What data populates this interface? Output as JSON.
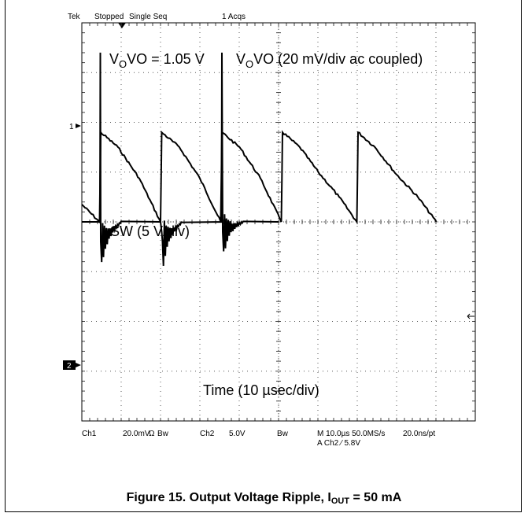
{
  "chart_data": {
    "type": "line",
    "title": "",
    "status": {
      "brand": "Tek",
      "state": "Stopped",
      "mode": "Single Seq",
      "acqs": "1 Acqs"
    },
    "xlabel": "Time (10 µsec/div)",
    "x_unit": "µs",
    "xlim": [
      -40,
      60
    ],
    "grid": true,
    "divisions": {
      "x": 10,
      "y": 8
    },
    "markers": {
      "ch1": "1",
      "ch2": "2"
    },
    "series": [
      {
        "name": "VO (20 mV/div ac coupled)",
        "channel": "Ch1",
        "unit": "mV",
        "ylim": [
          -80,
          80
        ],
        "x": [
          -40,
          -35.5,
          -35.2,
          -30.8,
          -25.4,
          -20,
          -19.7,
          -15.2,
          -10,
          -4.7,
          -4.4,
          0.1,
          5.4,
          10.7,
          11.0,
          15.4,
          20.1,
          25.4,
          29.9,
          30.2,
          34.5,
          40,
          45.4,
          50.1
        ],
        "y": [
          7,
          0,
          36,
          30,
          17.5,
          0,
          36,
          30,
          17.5,
          0,
          36,
          30,
          17.5,
          0,
          36,
          30,
          20,
          10,
          0,
          36,
          30,
          19,
          10,
          0
        ]
      },
      {
        "name": "SW (5 V/div)",
        "channel": "Ch2",
        "unit": "V",
        "ylim": [
          -20,
          20
        ],
        "x": [
          -40,
          -35.4,
          -35.3,
          -35.2,
          -30,
          -20,
          -19.7,
          -19.5,
          -14.5,
          -4.5,
          -4.4,
          -4.2,
          1.0,
          10
        ],
        "y": [
          0,
          0,
          17,
          -2,
          0,
          0,
          -1,
          -2,
          0,
          0,
          17,
          -1,
          0,
          0
        ]
      }
    ],
    "annotations": [
      "VO = 1.05 V",
      "VO (20 mV/div ac coupled)",
      "SW (5 V/div)",
      "Time (10 µsec/div)"
    ],
    "readout": {
      "ch1_label": "Ch1",
      "ch1_scale": "20.0mV",
      "ch1_coupling": "Ω",
      "bw_label": "Bw",
      "ch2_label": "Ch2",
      "ch2_scale": "5.0V",
      "timebase": "M 10.0µs 50.0MS/s",
      "resolution": "20.0ns/pt",
      "trigger": "A Ch2 ⁄ 5.8V"
    },
    "caption": {
      "prefix": "Figure 15. Output Voltage Ripple, I",
      "sub": "OUT",
      "suffix": " = 50 mA"
    }
  }
}
